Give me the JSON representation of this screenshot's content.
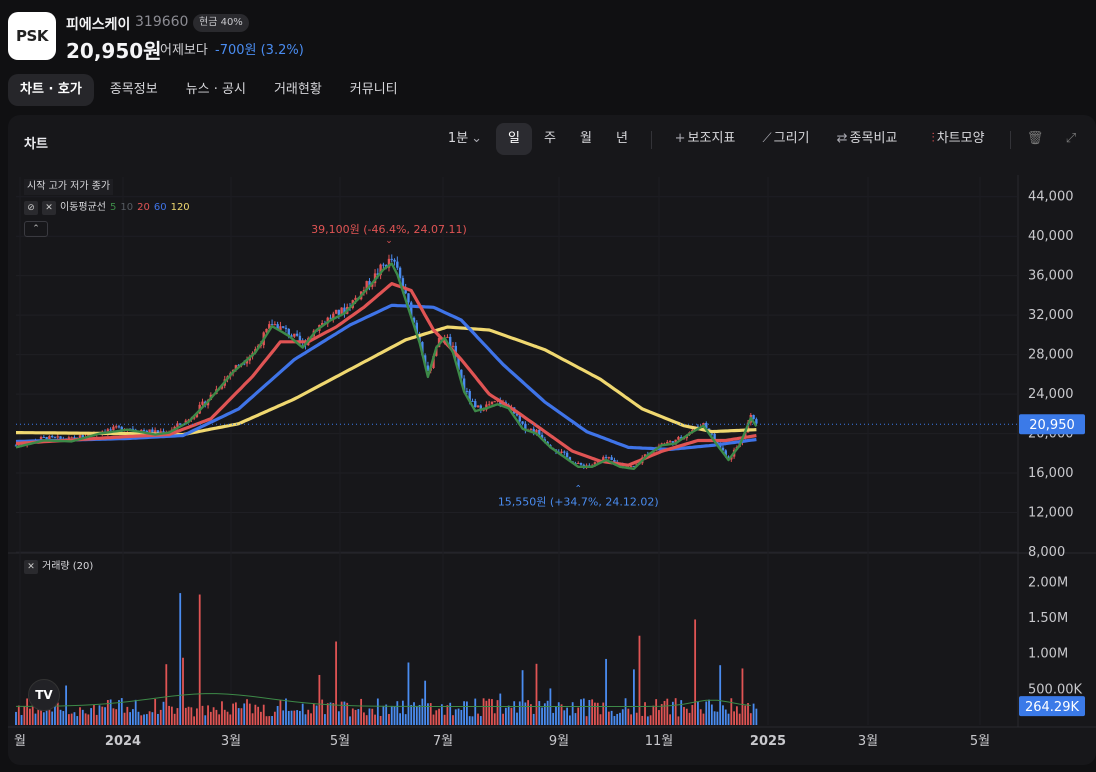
{
  "stock": {
    "logo_text": "PSK",
    "name": "피에스케이",
    "code": "319660",
    "cash_badge": "현금 40%",
    "price": "20,950원",
    "compare_label": "어제보다",
    "change": "-700원 (3.2%)"
  },
  "tabs": [
    {
      "label": "차트 · 호가",
      "active": true
    },
    {
      "label": "종목정보",
      "active": false
    },
    {
      "label": "뉴스 · 공시",
      "active": false
    },
    {
      "label": "거래현황",
      "active": false
    },
    {
      "label": "커뮤니티",
      "active": false
    }
  ],
  "panel": {
    "title": "차트"
  },
  "toolbar": {
    "interval": "1분",
    "periods": [
      "일",
      "주",
      "월",
      "년"
    ],
    "selected_period": "일",
    "indicators": "보조지표",
    "draw": "그리기",
    "compare": "종목비교",
    "chart_style": "차트모양"
  },
  "legend": {
    "ohlc": "시작 고가 저가 종가",
    "ma_label": "이동평균선",
    "ma_periods": [
      {
        "label": "5",
        "color": "#3d8a48"
      },
      {
        "label": "10",
        "color": "#555a60"
      },
      {
        "label": "20",
        "color": "#e05454"
      },
      {
        "label": "60",
        "color": "#3f74e8"
      },
      {
        "label": "120",
        "color": "#f0d870"
      }
    ],
    "volume": "거래량 (20)"
  },
  "colors": {
    "up": "#e05454",
    "down": "#4a8cf0",
    "ma5": "#3d8a48",
    "ma20": "#e05454",
    "ma60": "#3f74e8",
    "ma120": "#f0d870",
    "price_tag": "#3b7ae8"
  },
  "chart_data": {
    "type": "candlestick",
    "x_ticks": [
      "월",
      "2024",
      "3월",
      "5월",
      "7월",
      "9월",
      "11월",
      "2025",
      "3월",
      "5월"
    ],
    "y_ticks": [
      "44,000",
      "40,000",
      "36,000",
      "32,000",
      "28,000",
      "24,000",
      "20,000",
      "16,000",
      "12,000",
      "8,000"
    ],
    "ylim": [
      8000,
      46000
    ],
    "volume_ticks": [
      "2.00M",
      "1.50M",
      "1.00M",
      "500.00K"
    ],
    "volume_ylim": [
      0,
      2300000
    ],
    "current_price_label": "20,950",
    "current_volume_label": "264.29K",
    "high_annotation": "39,100원 (-46.4%, 24.07.11)",
    "low_annotation": "15,550원 (+34.7%, 24.12.02)",
    "close_series": [
      {
        "t": 0,
        "v": 18800
      },
      {
        "t": 10,
        "v": 19500
      },
      {
        "t": 20,
        "v": 19400
      },
      {
        "t": 30,
        "v": 20200
      },
      {
        "t": 40,
        "v": 20600
      },
      {
        "t": 50,
        "v": 20100
      },
      {
        "t": 55,
        "v": 20300
      },
      {
        "t": 62,
        "v": 21400
      },
      {
        "t": 70,
        "v": 23800
      },
      {
        "t": 78,
        "v": 26500
      },
      {
        "t": 86,
        "v": 28500
      },
      {
        "t": 92,
        "v": 31200
      },
      {
        "t": 98,
        "v": 30200
      },
      {
        "t": 103,
        "v": 29000
      },
      {
        "t": 108,
        "v": 30800
      },
      {
        "t": 113,
        "v": 31800
      },
      {
        "t": 118,
        "v": 32500
      },
      {
        "t": 123,
        "v": 34000
      },
      {
        "t": 128,
        "v": 35600
      },
      {
        "t": 132,
        "v": 37000
      },
      {
        "t": 135,
        "v": 37600
      },
      {
        "t": 137,
        "v": 36500
      },
      {
        "t": 141,
        "v": 33000
      },
      {
        "t": 145,
        "v": 29500
      },
      {
        "t": 148,
        "v": 26000
      },
      {
        "t": 151,
        "v": 29000
      },
      {
        "t": 154,
        "v": 30000
      },
      {
        "t": 157,
        "v": 28500
      },
      {
        "t": 161,
        "v": 24500
      },
      {
        "t": 165,
        "v": 22500
      },
      {
        "t": 169,
        "v": 22800
      },
      {
        "t": 173,
        "v": 23200
      },
      {
        "t": 177,
        "v": 22800
      },
      {
        "t": 182,
        "v": 20700
      },
      {
        "t": 187,
        "v": 20200
      },
      {
        "t": 192,
        "v": 18800
      },
      {
        "t": 197,
        "v": 17800
      },
      {
        "t": 202,
        "v": 16800
      },
      {
        "t": 207,
        "v": 16800
      },
      {
        "t": 212,
        "v": 17500
      },
      {
        "t": 217,
        "v": 16800
      },
      {
        "t": 222,
        "v": 16600
      },
      {
        "t": 227,
        "v": 18000
      },
      {
        "t": 232,
        "v": 19000
      },
      {
        "t": 237,
        "v": 19200
      },
      {
        "t": 242,
        "v": 20200
      },
      {
        "t": 247,
        "v": 21000
      },
      {
        "t": 252,
        "v": 19000
      },
      {
        "t": 256,
        "v": 17500
      },
      {
        "t": 260,
        "v": 19000
      },
      {
        "t": 264,
        "v": 21800
      },
      {
        "t": 266,
        "v": 20950
      }
    ],
    "ma20_series": [
      {
        "t": 0,
        "v": 19000
      },
      {
        "t": 40,
        "v": 19700
      },
      {
        "t": 55,
        "v": 19900
      },
      {
        "t": 70,
        "v": 21500
      },
      {
        "t": 85,
        "v": 25800
      },
      {
        "t": 95,
        "v": 29300
      },
      {
        "t": 105,
        "v": 29300
      },
      {
        "t": 115,
        "v": 30800
      },
      {
        "t": 125,
        "v": 32800
      },
      {
        "t": 135,
        "v": 35200
      },
      {
        "t": 142,
        "v": 34500
      },
      {
        "t": 150,
        "v": 30500
      },
      {
        "t": 160,
        "v": 27500
      },
      {
        "t": 170,
        "v": 24000
      },
      {
        "t": 180,
        "v": 22200
      },
      {
        "t": 190,
        "v": 20200
      },
      {
        "t": 200,
        "v": 18200
      },
      {
        "t": 210,
        "v": 17200
      },
      {
        "t": 220,
        "v": 16800
      },
      {
        "t": 232,
        "v": 18200
      },
      {
        "t": 245,
        "v": 19300
      },
      {
        "t": 255,
        "v": 19300
      },
      {
        "t": 266,
        "v": 19800
      }
    ],
    "ma60_series": [
      {
        "t": 0,
        "v": 19200
      },
      {
        "t": 40,
        "v": 19500
      },
      {
        "t": 60,
        "v": 19800
      },
      {
        "t": 80,
        "v": 22500
      },
      {
        "t": 100,
        "v": 27500
      },
      {
        "t": 120,
        "v": 31000
      },
      {
        "t": 135,
        "v": 33000
      },
      {
        "t": 150,
        "v": 32800
      },
      {
        "t": 160,
        "v": 31500
      },
      {
        "t": 175,
        "v": 27000
      },
      {
        "t": 190,
        "v": 23200
      },
      {
        "t": 205,
        "v": 20200
      },
      {
        "t": 220,
        "v": 18600
      },
      {
        "t": 235,
        "v": 18400
      },
      {
        "t": 250,
        "v": 18800
      },
      {
        "t": 266,
        "v": 19400
      }
    ],
    "ma120_series": [
      {
        "t": 0,
        "v": 20100
      },
      {
        "t": 40,
        "v": 20000
      },
      {
        "t": 60,
        "v": 19900
      },
      {
        "t": 80,
        "v": 21000
      },
      {
        "t": 100,
        "v": 23500
      },
      {
        "t": 120,
        "v": 26500
      },
      {
        "t": 140,
        "v": 29500
      },
      {
        "t": 155,
        "v": 30800
      },
      {
        "t": 170,
        "v": 30500
      },
      {
        "t": 190,
        "v": 28500
      },
      {
        "t": 210,
        "v": 25500
      },
      {
        "t": 225,
        "v": 22500
      },
      {
        "t": 240,
        "v": 20800
      },
      {
        "t": 250,
        "v": 20200
      },
      {
        "t": 266,
        "v": 20400
      }
    ]
  }
}
